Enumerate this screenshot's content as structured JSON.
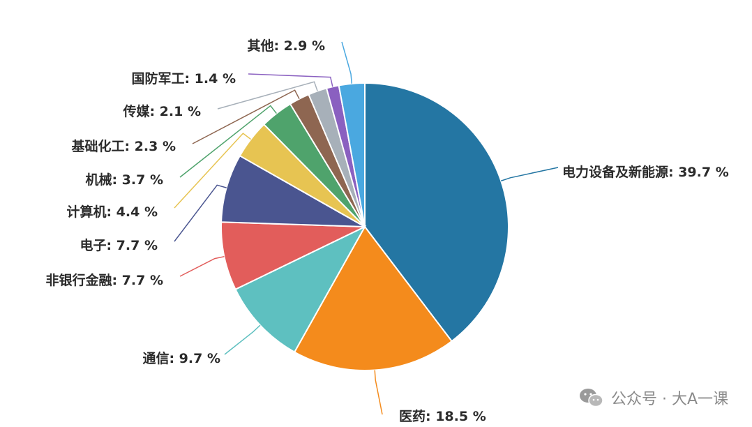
{
  "chart_data": {
    "type": "pie",
    "slices": [
      {
        "label": "电力设备及新能源",
        "value": 39.7,
        "display": "电力设备及新能源: 39.7 %",
        "color": "#2476a3"
      },
      {
        "label": "医药",
        "value": 18.5,
        "display": "医药: 18.5 %",
        "color": "#f48b1c"
      },
      {
        "label": "通信",
        "value": 9.7,
        "display": "通信: 9.7 %",
        "color": "#5ec0c0"
      },
      {
        "label": "非银行金融",
        "value": 7.7,
        "display": "非银行金融: 7.7 %",
        "color": "#e25d5b"
      },
      {
        "label": "电子",
        "value": 7.7,
        "display": "电子: 7.7 %",
        "color": "#4a5590"
      },
      {
        "label": "计算机",
        "value": 4.4,
        "display": "计算机: 4.4 %",
        "color": "#e7c452"
      },
      {
        "label": "机械",
        "value": 3.7,
        "display": "机械: 3.7 %",
        "color": "#4fa36c"
      },
      {
        "label": "基础化工",
        "value": 2.3,
        "display": "基础化工: 2.3 %",
        "color": "#8e6651"
      },
      {
        "label": "传媒",
        "value": 2.1,
        "display": "传媒: 2.1 %",
        "color": "#a7b0b9"
      },
      {
        "label": "国防军工",
        "value": 1.4,
        "display": "国防军工: 1.4 %",
        "color": "#8a60c0"
      },
      {
        "label": "其他",
        "value": 2.9,
        "display": "其他: 2.9 %",
        "color": "#4aa8e0"
      }
    ],
    "title": "",
    "start_angle": "12 o'clock",
    "direction": "clockwise",
    "legend": "none"
  },
  "watermark": {
    "text": "公众号 · 大A一课",
    "icon": "wechat-icon"
  }
}
